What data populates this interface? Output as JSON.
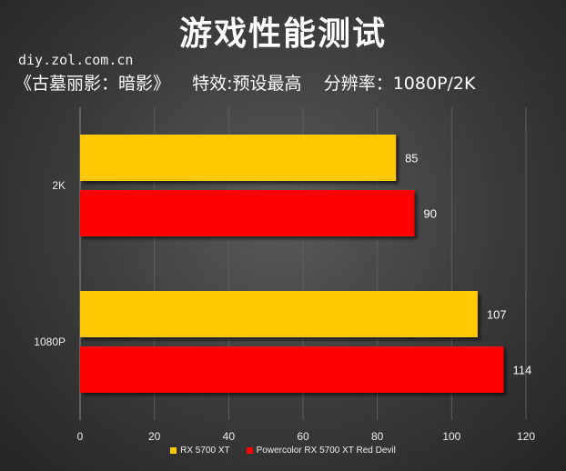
{
  "title": "游戏性能测试",
  "source": "diy.zol.com.cn",
  "subtitle": "《古墓丽影：暗影》    特效:预设最高    分辨率：1080P/2K",
  "colors": {
    "series1": "#ffc800",
    "series2": "#ff0000",
    "grid": "#5e5e5e",
    "axis": "#8a8a8a",
    "text": "#ffffff"
  },
  "chart_data": {
    "type": "bar",
    "orientation": "horizontal",
    "categories": [
      "2K",
      "1080P"
    ],
    "series": [
      {
        "name": "RX 5700 XT",
        "values": [
          85,
          107
        ]
      },
      {
        "name": "Powercolor RX 5700 XT Red Devil",
        "values": [
          90,
          114
        ]
      }
    ],
    "xlim": [
      0,
      120
    ],
    "xticks": [
      "0",
      "20",
      "40",
      "60",
      "80",
      "100",
      "120"
    ],
    "grid": true,
    "legend": "bottom",
    "data_labels": true
  }
}
